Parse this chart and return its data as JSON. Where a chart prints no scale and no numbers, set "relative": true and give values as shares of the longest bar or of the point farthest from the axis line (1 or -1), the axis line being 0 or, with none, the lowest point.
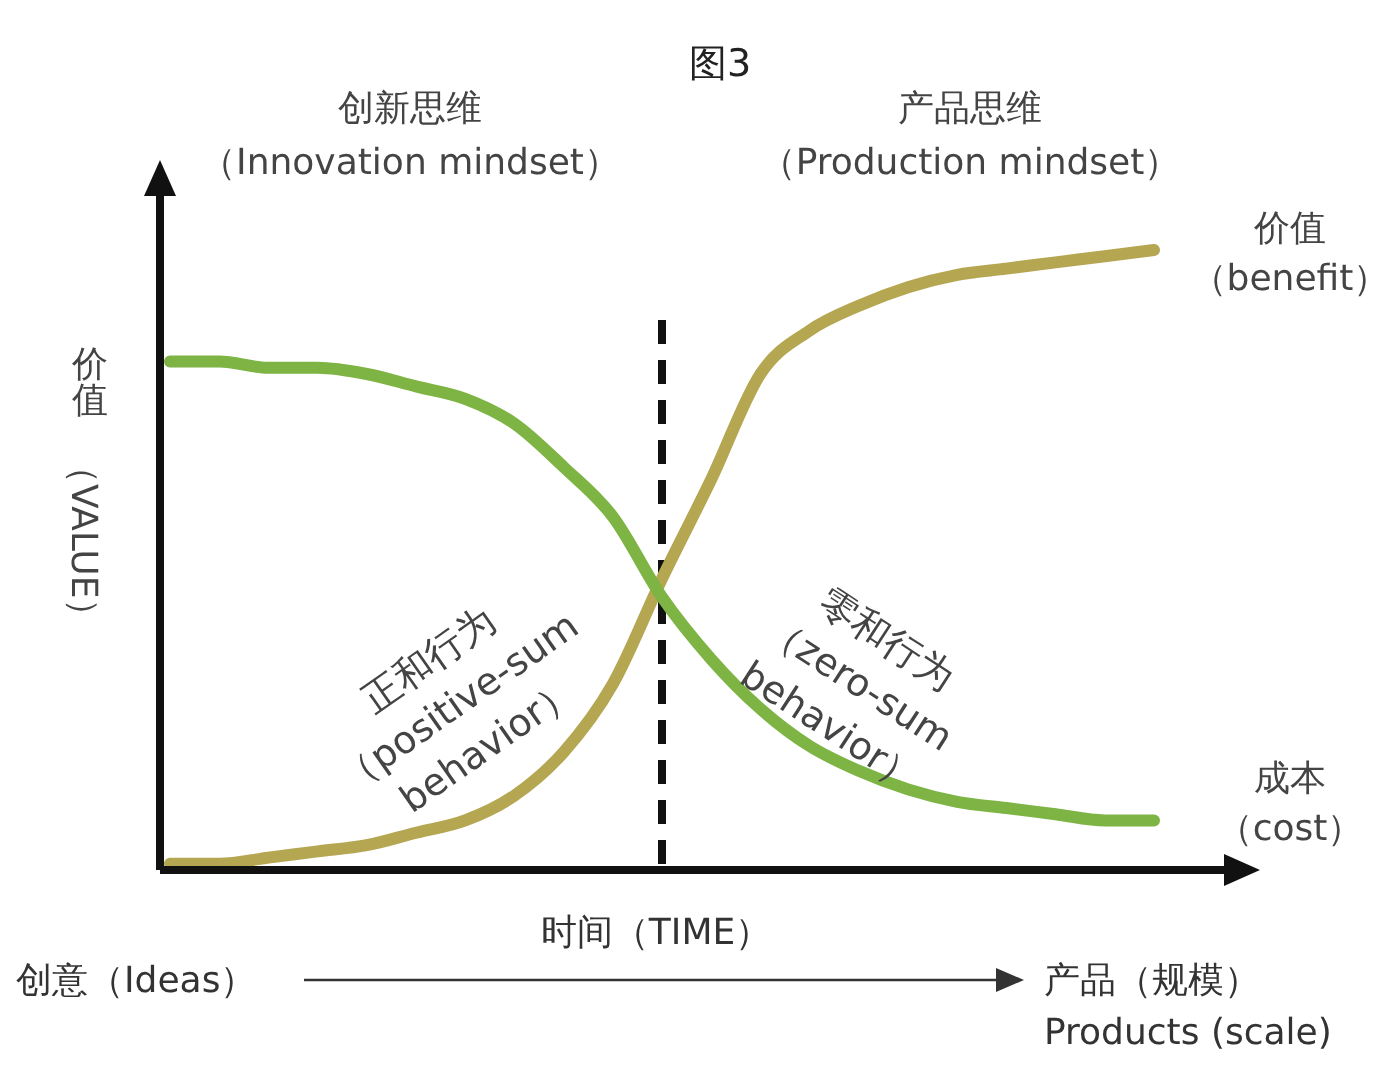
{
  "chart_data": {
    "type": "line",
    "title": "图3",
    "xlabel": "时间（TIME）",
    "ylabel": "价值（VALUE）",
    "relative": true,
    "categories": [
      null,
      null,
      null,
      null,
      null,
      null,
      null,
      null,
      null,
      null,
      null,
      null,
      null,
      null,
      null,
      null,
      null,
      null,
      null,
      null,
      null
    ],
    "series": [
      {
        "name": "价值（benefit）",
        "color": "#b5a651",
        "values": [
          0.01,
          0.01,
          0.02,
          0.03,
          0.04,
          0.06,
          0.08,
          0.12,
          0.19,
          0.3,
          0.47,
          0.63,
          0.8,
          0.87,
          0.91,
          0.94,
          0.96,
          0.97,
          0.98,
          0.99,
          1
        ]
      },
      {
        "name": "成本（cost）",
        "color": "#7db443",
        "values": [
          0.82,
          0.82,
          0.81,
          0.81,
          0.8,
          0.78,
          0.76,
          0.72,
          0.65,
          0.57,
          0.44,
          0.34,
          0.26,
          0.2,
          0.16,
          0.13,
          0.11,
          0.1,
          0.09,
          0.08,
          0.08
        ]
      }
    ],
    "annotations": [
      "创新思维（Innovation mindset）",
      "产品思维（Production mindset）",
      "正和行为（positive-sum\nbehavior）",
      "零和行为（zero-sum\nbehavior）",
      "创意（Ideas）",
      "产品（规模）\nProducts (scale)"
    ],
    "grid": false,
    "legend": false,
    "marker": "none",
    "line_style": "solid"
  }
}
